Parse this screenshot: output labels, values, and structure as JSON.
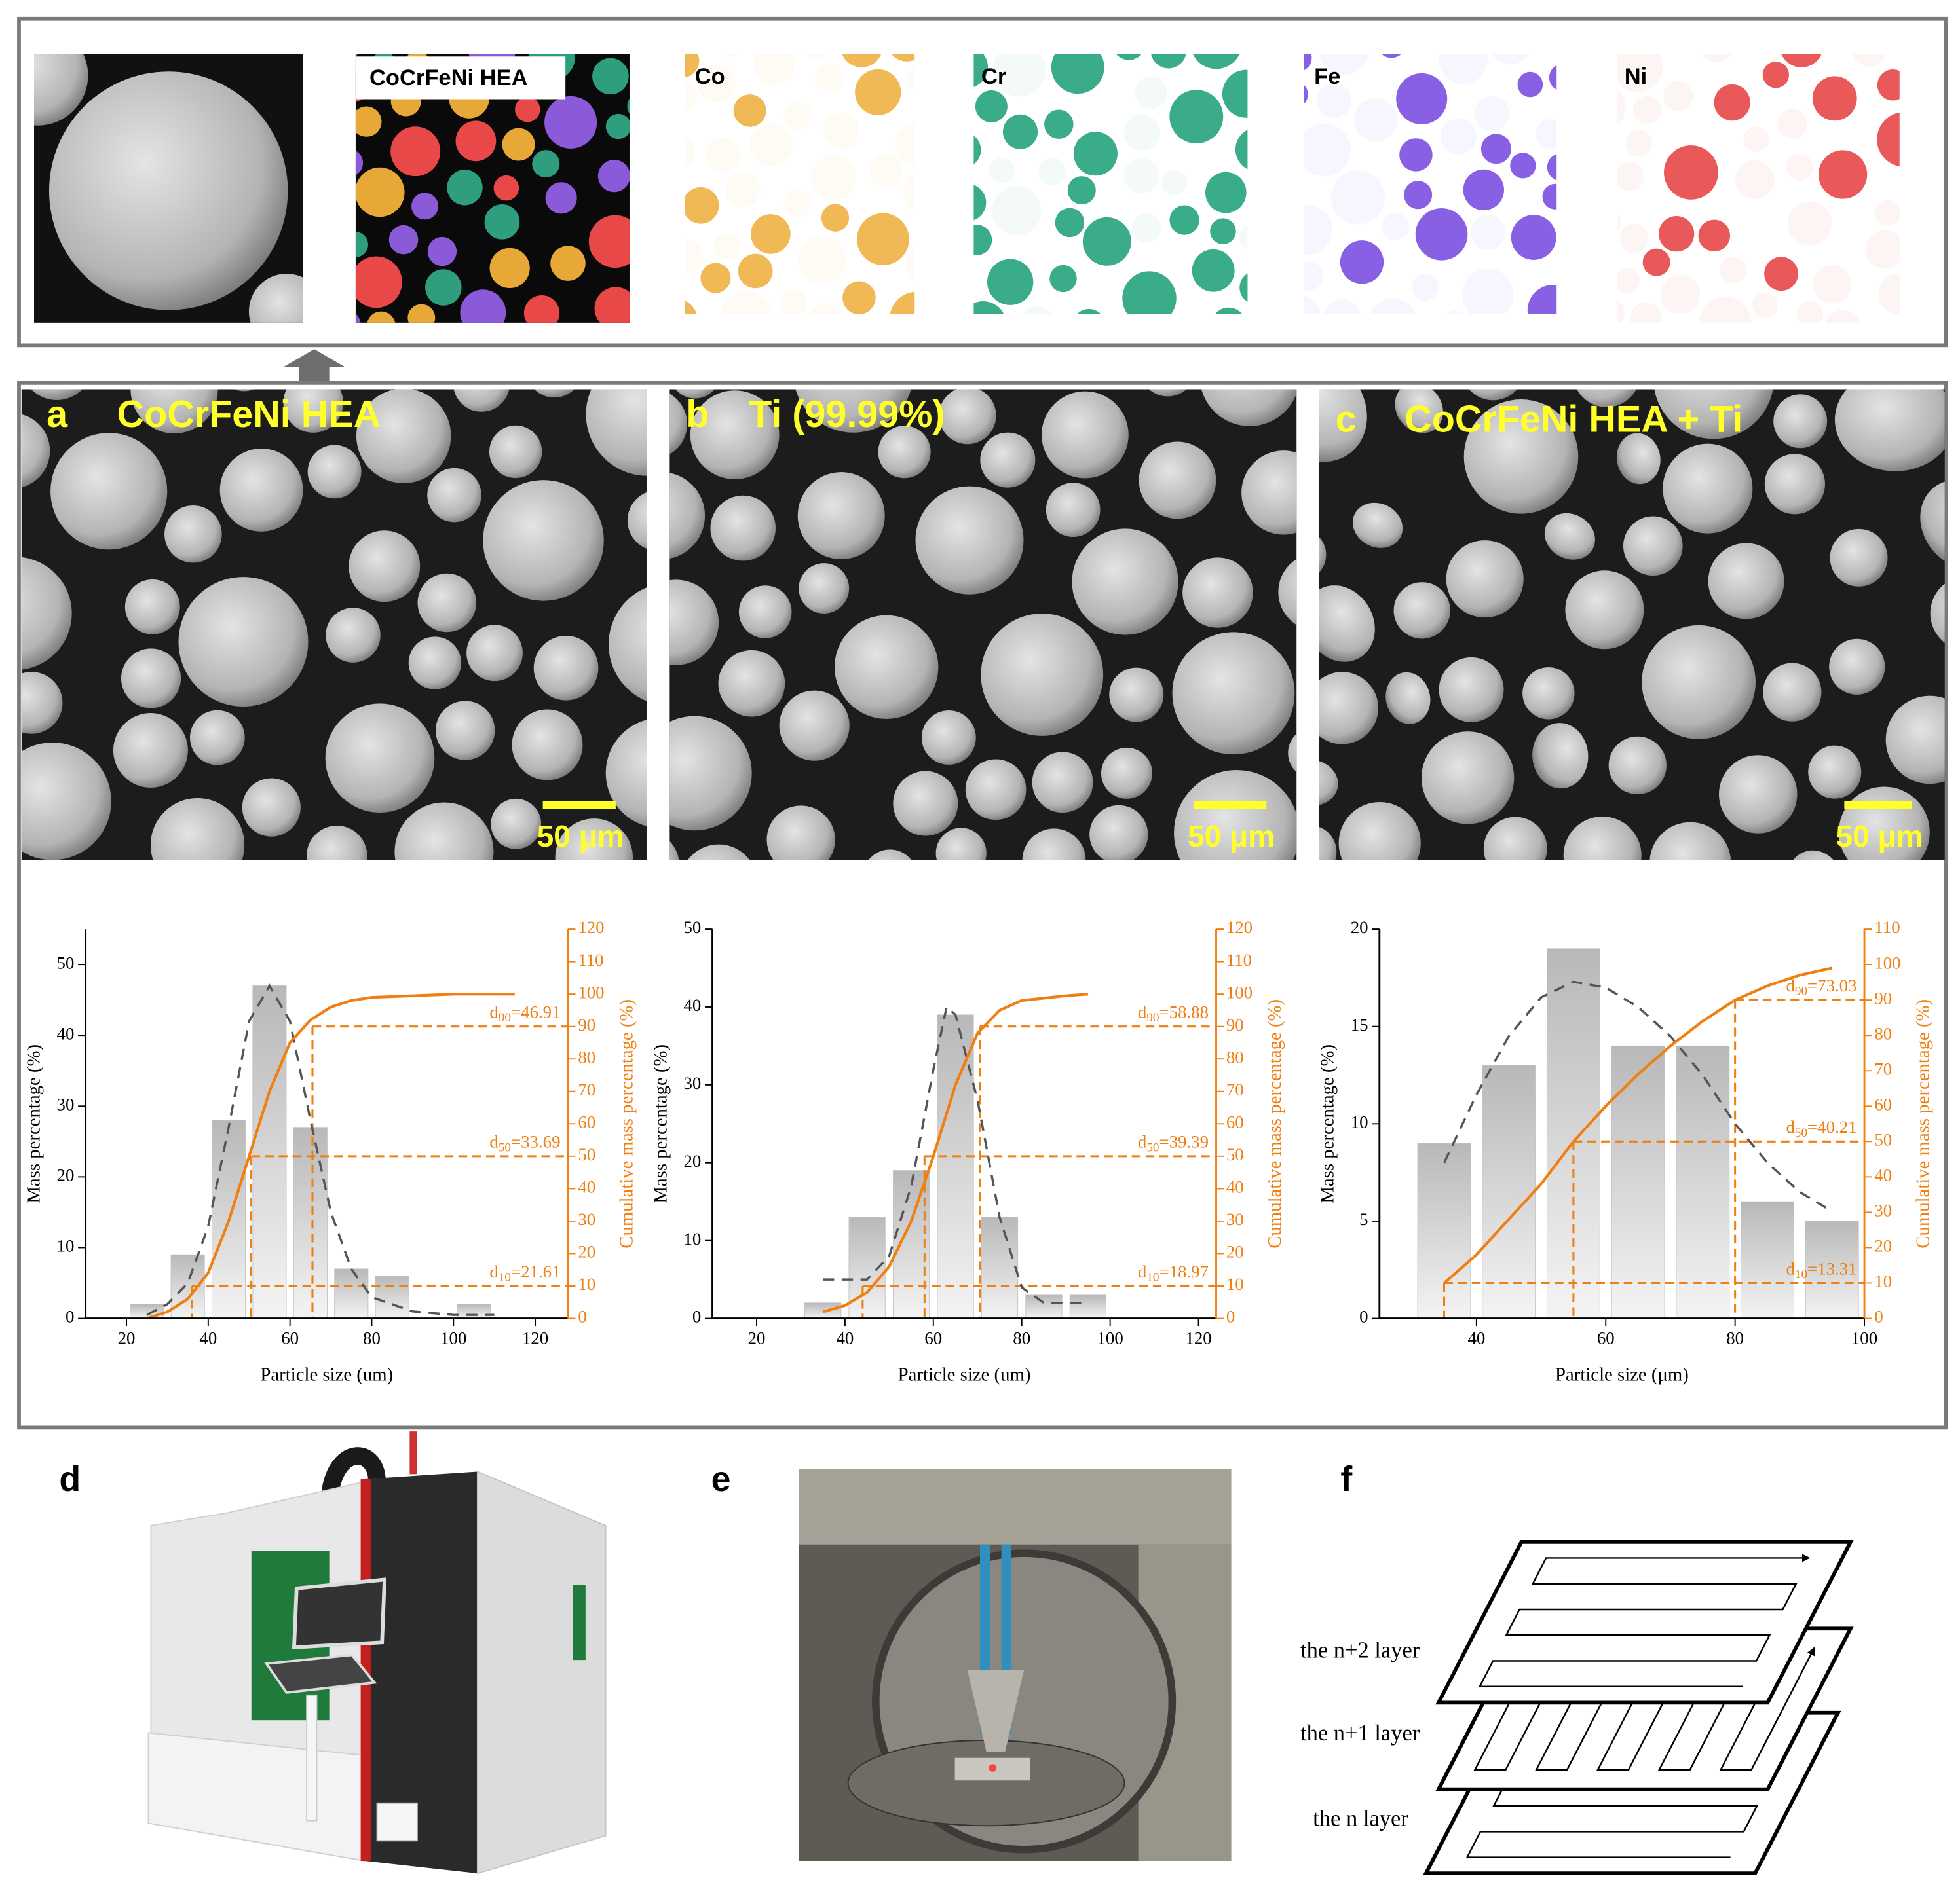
{
  "top_panel": {
    "map_title": "CoCrFeNi HEA",
    "elements": [
      "Co",
      "Cr",
      "Fe",
      "Ni"
    ]
  },
  "sem_panels": [
    {
      "letter": "a",
      "title": "CoCrFeNi HEA",
      "scale_bar": "50 μm"
    },
    {
      "letter": "b",
      "title": "Ti (99.99%)",
      "scale_bar": "50 μm"
    },
    {
      "letter": "c",
      "title": "CoCrFeNi HEA + Ti",
      "scale_bar": "50 μm"
    }
  ],
  "chart_data": [
    {
      "type": "bar",
      "x_label": "Particle size (um)",
      "y_label": "Mass percentage (%)",
      "y2_label": "Cumulative mass percentage (%)",
      "x": [
        25,
        35,
        45,
        55,
        65,
        75,
        85,
        105
      ],
      "values": [
        2,
        9,
        28,
        47,
        27,
        7,
        6,
        2
      ],
      "color": "#c4c4c4",
      "series": [
        {
          "style": "dashed",
          "color": "#555555",
          "x": [
            25,
            30,
            35,
            40,
            45,
            50,
            55,
            60,
            65,
            70,
            75,
            80,
            90,
            100,
            110
          ],
          "values": [
            0.5,
            2,
            5,
            13,
            27,
            42,
            47,
            42,
            28,
            15,
            7,
            3,
            1,
            0.5,
            0.5
          ]
        },
        {
          "color": "#f07f12",
          "axis": "y2",
          "x": [
            25,
            30,
            35,
            40,
            45,
            50,
            55,
            60,
            65,
            70,
            75,
            80,
            90,
            100,
            115
          ],
          "values": [
            0,
            2,
            6,
            14,
            30,
            50,
            70,
            85,
            92,
            96,
            98,
            99,
            99.5,
            100,
            100
          ]
        }
      ],
      "xlim": [
        10,
        128
      ],
      "xticks": [
        20,
        40,
        60,
        80,
        100,
        120
      ],
      "ylim": [
        0,
        55
      ],
      "yticks": [
        0,
        10,
        20,
        30,
        40,
        50
      ],
      "y2lim": [
        0,
        120
      ],
      "y2ticks": [
        0,
        10,
        20,
        30,
        40,
        50,
        60,
        70,
        80,
        90,
        100,
        110,
        120
      ],
      "annotations": [
        {
          "symbol": "d",
          "sub": "90",
          "text": "=46.91",
          "x": 65.5,
          "y2": 90
        },
        {
          "symbol": "d",
          "sub": "50",
          "text": "=33.69",
          "x": 50.5,
          "y2": 50
        },
        {
          "symbol": "d",
          "sub": "10",
          "text": "=21.61",
          "x": 36,
          "y2": 10
        }
      ]
    },
    {
      "type": "bar",
      "x_label": "Particle size (um)",
      "y_label": "Mass percentage (%)",
      "y2_label": "Cumulative mass percentage (%)",
      "x": [
        35,
        45,
        55,
        65,
        75,
        85,
        95
      ],
      "values": [
        2,
        13,
        19,
        39,
        13,
        3,
        3
      ],
      "color": "#c4c4c4",
      "series": [
        {
          "style": "dashed",
          "color": "#555555",
          "x": [
            35,
            45,
            50,
            55,
            60,
            63,
            65,
            70,
            75,
            80,
            85,
            95
          ],
          "values": [
            5,
            5,
            8,
            17,
            32,
            40,
            39,
            28,
            13,
            4,
            2,
            2
          ]
        },
        {
          "color": "#f07f12",
          "axis": "y2",
          "x": [
            35,
            40,
            45,
            50,
            55,
            60,
            65,
            70,
            75,
            80,
            90,
            95
          ],
          "values": [
            2,
            4,
            8,
            16,
            30,
            50,
            72,
            88,
            95,
            98,
            99.5,
            100
          ]
        }
      ],
      "xlim": [
        10,
        124
      ],
      "xticks": [
        20,
        40,
        60,
        80,
        100,
        120
      ],
      "ylim": [
        0,
        50
      ],
      "yticks": [
        0,
        10,
        20,
        30,
        40,
        50
      ],
      "y2lim": [
        0,
        120
      ],
      "y2ticks": [
        0,
        10,
        20,
        30,
        40,
        50,
        60,
        70,
        80,
        90,
        100,
        110,
        120
      ],
      "annotations": [
        {
          "symbol": "d",
          "sub": "90",
          "text": "=58.88",
          "x": 70.5,
          "y2": 90
        },
        {
          "symbol": "d",
          "sub": "50",
          "text": "=39.39",
          "x": 58,
          "y2": 50
        },
        {
          "symbol": "d",
          "sub": "10",
          "text": "=18.97",
          "x": 44,
          "y2": 10
        }
      ]
    },
    {
      "type": "bar",
      "x_label": "Particle size (μm)",
      "y_label": "Mass percentage (%)",
      "y2_label": "Cumulative mass percentage (%)",
      "x": [
        35,
        45,
        55,
        65,
        75,
        85,
        95
      ],
      "values": [
        9,
        13,
        19,
        14,
        14,
        6,
        5
      ],
      "color": "#c4c4c4",
      "series": [
        {
          "style": "dashed",
          "color": "#555555",
          "x": [
            35,
            40,
            45,
            50,
            55,
            60,
            65,
            70,
            75,
            80,
            85,
            90,
            95
          ],
          "values": [
            8,
            11.5,
            14.5,
            16.5,
            17.3,
            17,
            16,
            14.5,
            12.5,
            10,
            8,
            6.5,
            5.5
          ]
        },
        {
          "color": "#f07f12",
          "axis": "y2",
          "x": [
            35,
            40,
            45,
            50,
            55,
            60,
            65,
            70,
            75,
            80,
            85,
            90,
            95
          ],
          "values": [
            10,
            18,
            28,
            38,
            50,
            60,
            69,
            77,
            84,
            90,
            94,
            97,
            99
          ]
        }
      ],
      "xlim": [
        25,
        100
      ],
      "xticks": [
        40,
        60,
        80,
        100
      ],
      "ylim": [
        0,
        20
      ],
      "yticks": [
        0,
        5,
        10,
        15,
        20
      ],
      "y2lim": [
        0,
        110
      ],
      "y2ticks": [
        0,
        10,
        20,
        30,
        40,
        50,
        60,
        70,
        80,
        90,
        100,
        110
      ],
      "annotations": [
        {
          "symbol": "d",
          "sub": "90",
          "text": "=73.03",
          "x": 80,
          "y2": 90
        },
        {
          "symbol": "d",
          "sub": "50",
          "text": "=40.21",
          "x": 55,
          "y2": 50
        },
        {
          "symbol": "d",
          "sub": "10",
          "text": "=13.31",
          "x": 35,
          "y2": 10
        }
      ]
    }
  ],
  "lower_panels": {
    "letters": [
      "d",
      "e",
      "f"
    ],
    "layers": [
      "the n+2 layer",
      "the n+1 layer",
      "the n layer"
    ]
  }
}
